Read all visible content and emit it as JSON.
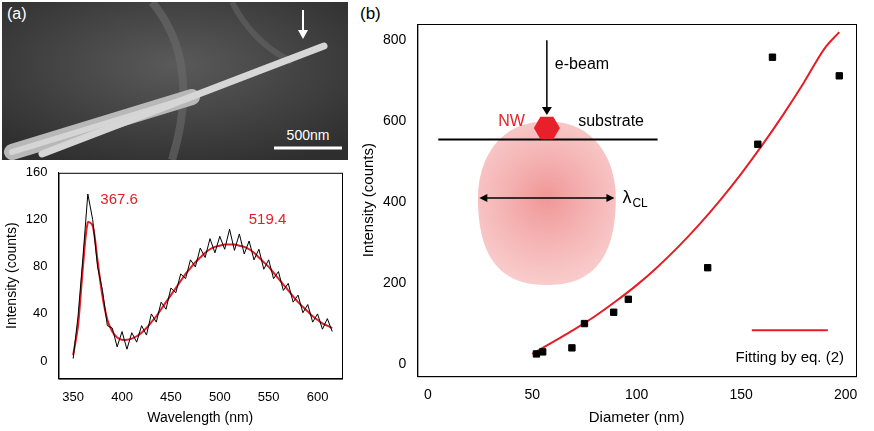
{
  "panel_labels": [
    "(a)",
    "(b)"
  ],
  "sem_image": {
    "scale_bar": "500nm"
  },
  "chart_data": [
    {
      "type": "line",
      "x_label": "Wavelength (nm)",
      "y_label": "Intensity (counts)",
      "x": [
        350,
        355,
        360,
        365,
        370,
        375,
        380,
        385,
        390,
        395,
        400,
        405,
        410,
        415,
        420,
        425,
        430,
        435,
        440,
        445,
        450,
        455,
        460,
        465,
        470,
        475,
        480,
        485,
        490,
        495,
        500,
        505,
        510,
        515,
        520,
        525,
        530,
        535,
        540,
        545,
        550,
        555,
        560,
        565,
        570,
        575,
        580,
        585,
        590,
        595,
        600,
        605,
        610,
        615
      ],
      "series": [
        {
          "color": "#000000",
          "values": [
            2,
            38,
            88,
            142,
            120,
            80,
            60,
            30,
            28,
            12,
            25,
            10,
            24,
            16,
            30,
            22,
            40,
            33,
            50,
            44,
            62,
            58,
            74,
            70,
            86,
            80,
            96,
            88,
            104,
            92,
            106,
            95,
            112,
            94,
            108,
            91,
            102,
            86,
            95,
            78,
            86,
            70,
            76,
            60,
            66,
            50,
            56,
            41,
            48,
            33,
            40,
            27,
            36,
            25
          ]
        },
        {
          "color": "#e41e26",
          "values": [
            5,
            30,
            80,
            118,
            115,
            85,
            55,
            35,
            25,
            20,
            18,
            18,
            19,
            21,
            24,
            28,
            33,
            38,
            44,
            50,
            56,
            62,
            68,
            74,
            79,
            84,
            88,
            92,
            95,
            97,
            98,
            99,
            99,
            99,
            98,
            97,
            95,
            92,
            88,
            84,
            80,
            75,
            70,
            65,
            60,
            55,
            50,
            46,
            42,
            38,
            35,
            32,
            30,
            28
          ]
        }
      ],
      "annotations": [
        {
          "label": "367.6",
          "x": 367.6,
          "color": "#e41e26"
        },
        {
          "label": "519.4",
          "x": 519.4,
          "color": "#e41e26"
        }
      ],
      "xlim": [
        335,
        625
      ],
      "xticks": [
        350,
        400,
        450,
        500,
        550,
        600
      ],
      "ylim": [
        -15,
        160
      ],
      "yticks": [
        0,
        40,
        80,
        120,
        160
      ],
      "grid": false
    },
    {
      "type": "scatter",
      "x_label": "Diameter (nm)",
      "y_label": "Intensity (counts)",
      "series": [
        {
          "type": "scatter",
          "marker": "square",
          "color": "#000000",
          "x": [
            52,
            55,
            69,
            75,
            89,
            96,
            134,
            158,
            165,
            197
          ],
          "values": [
            25,
            30,
            40,
            100,
            128,
            160,
            238,
            543,
            758,
            712
          ]
        },
        {
          "name": "Fitting by eq. (2)",
          "type": "line",
          "color": "#e41e26",
          "x": [
            50,
            60,
            70,
            80,
            90,
            100,
            110,
            120,
            130,
            140,
            150,
            160,
            170,
            180,
            190,
            197
          ],
          "values": [
            25,
            55,
            85,
            118,
            155,
            195,
            240,
            290,
            345,
            405,
            470,
            540,
            615,
            695,
            780,
            820
          ]
        }
      ],
      "xlim": [
        -5,
        205
      ],
      "xticks": [
        0,
        50,
        100,
        150,
        200
      ],
      "ylim": [
        -30,
        840
      ],
      "yticks": [
        0,
        200,
        400,
        600,
        800
      ],
      "grid": false,
      "legend": "bottom right",
      "inset": {
        "e_beam": "e-beam",
        "nanowire": "NW",
        "substrate": "substrate",
        "symbol": "λ",
        "subscript": "CL"
      }
    }
  ]
}
